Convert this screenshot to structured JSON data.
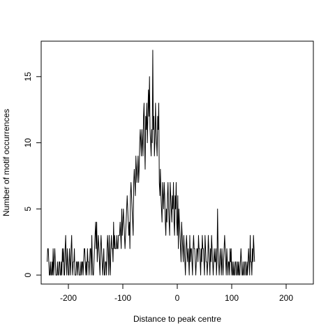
{
  "chart_data": {
    "type": "line",
    "title": "",
    "xlabel": "Distance to peak centre",
    "ylabel": "Number of motif occurrences",
    "xlim": [
      -250,
      250
    ],
    "ylim": [
      -0.68,
      17.68
    ],
    "x_ticks": [
      -200,
      -100,
      0,
      100,
      200
    ],
    "x_tick_labels": [
      "-200",
      "-100",
      "0",
      "100",
      "200"
    ],
    "y_ticks": [
      0,
      5,
      10,
      15
    ],
    "y_tick_labels": [
      "0",
      "5",
      "10",
      "15"
    ],
    "grid": false,
    "legend": "none",
    "line_color": "#000000",
    "x_start": -239,
    "x_step": 1,
    "values": [
      1,
      2,
      2,
      1,
      0,
      0,
      1,
      0,
      0,
      1,
      0,
      2,
      0,
      1,
      2,
      1,
      0,
      0,
      0,
      1,
      0,
      0,
      1,
      1,
      0,
      0,
      1,
      0,
      2,
      1,
      2,
      0,
      0,
      2,
      3,
      1,
      0,
      2,
      1,
      0,
      0,
      2,
      1,
      0,
      2,
      3,
      1,
      0,
      1,
      1,
      2,
      0,
      0,
      0,
      1,
      1,
      0,
      1,
      1,
      0,
      0,
      0,
      1,
      0,
      1,
      1,
      0,
      1,
      2,
      2,
      1,
      0,
      1,
      0,
      2,
      1,
      1,
      0,
      1,
      2,
      2,
      0,
      3,
      1,
      0,
      0,
      1,
      2,
      3,
      4,
      2,
      4,
      1,
      2,
      3,
      2,
      1,
      0,
      2,
      3,
      2,
      1,
      0,
      1,
      2,
      0,
      0,
      1,
      1,
      0,
      2,
      3,
      2,
      0,
      3,
      1,
      0,
      2,
      3,
      2,
      2,
      1,
      4,
      2,
      3,
      2,
      2,
      2,
      3,
      2,
      2,
      3,
      3,
      3,
      4,
      3,
      2,
      5,
      3,
      4,
      5,
      4,
      3,
      2,
      3,
      4,
      5,
      6,
      5,
      4,
      3,
      4,
      2,
      6,
      7,
      6,
      5,
      4,
      3,
      7,
      8,
      7,
      6,
      9,
      8,
      7,
      8,
      9,
      7,
      8,
      10,
      11,
      10,
      9,
      11,
      10,
      9,
      12,
      13,
      10,
      8,
      12,
      11,
      13,
      10,
      12,
      14,
      12,
      15,
      11,
      10,
      9,
      11,
      10,
      17,
      11,
      12,
      9,
      10,
      13,
      11,
      10,
      9,
      12,
      11,
      13,
      7,
      6,
      8,
      6,
      5,
      4,
      7,
      6,
      5,
      7,
      6,
      4,
      3,
      5,
      4,
      6,
      7,
      5,
      4,
      3,
      7,
      6,
      5,
      4,
      6,
      5,
      7,
      4,
      3,
      6,
      5,
      7,
      4,
      3,
      6,
      2,
      5,
      4,
      3,
      2,
      1,
      4,
      3,
      2,
      1,
      3,
      2,
      1,
      0,
      2,
      3,
      2,
      1,
      2,
      1,
      0,
      3,
      1,
      2,
      2,
      1,
      0,
      2,
      3,
      2,
      2,
      1,
      0,
      1,
      2,
      2,
      1,
      3,
      2,
      2,
      1,
      0,
      2,
      1,
      3,
      2,
      2,
      1,
      0,
      3,
      2,
      1,
      1,
      0,
      1,
      3,
      2,
      1,
      0,
      2,
      1,
      3,
      2,
      1,
      0,
      1,
      2,
      1,
      1,
      2,
      0,
      1,
      5,
      2,
      1,
      0,
      1,
      2,
      1,
      0,
      2,
      1,
      0,
      1,
      2,
      3,
      2,
      1,
      0,
      2,
      1,
      0,
      1,
      1,
      0,
      2,
      1,
      2,
      0,
      1,
      0,
      0,
      1,
      0,
      0,
      1,
      1,
      0,
      0,
      1,
      0,
      1,
      0,
      0,
      1,
      2,
      1,
      0,
      0,
      1,
      0,
      0,
      1,
      1,
      0,
      0,
      1,
      0,
      1,
      2,
      1,
      0,
      3,
      1,
      1,
      0,
      2,
      1,
      3,
      2,
      1
    ]
  }
}
